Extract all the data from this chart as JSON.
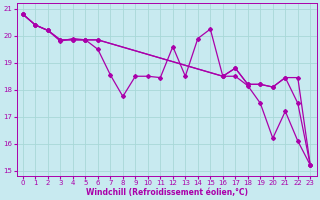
{
  "bg_color": "#c8eaf0",
  "grid_color": "#a8d8d8",
  "line_color": "#aa00aa",
  "xlabel": "Windchill (Refroidissement éolien,°C)",
  "xlim": [
    -0.5,
    23.5
  ],
  "ylim": [
    14.8,
    21.2
  ],
  "yticks": [
    15,
    16,
    17,
    18,
    19,
    20,
    21
  ],
  "xticks": [
    0,
    1,
    2,
    3,
    4,
    5,
    6,
    7,
    8,
    9,
    10,
    11,
    12,
    13,
    14,
    15,
    16,
    17,
    18,
    19,
    20,
    21,
    22,
    23
  ],
  "series1_x": [
    0,
    1,
    2,
    3,
    4,
    5,
    6,
    7,
    8,
    9,
    10,
    11,
    12,
    13,
    14,
    15,
    16,
    17,
    18,
    19,
    20,
    21,
    22,
    23
  ],
  "series1_y": [
    20.8,
    20.4,
    20.2,
    19.8,
    19.9,
    19.85,
    19.5,
    18.55,
    17.75,
    18.5,
    18.5,
    18.45,
    19.6,
    18.5,
    19.9,
    20.25,
    18.5,
    18.5,
    18.15,
    17.5,
    16.2,
    17.2,
    16.1,
    15.2
  ],
  "series2_x": [
    0,
    1,
    2,
    3,
    4,
    5,
    6,
    16,
    17,
    18,
    19,
    20,
    21,
    22,
    23
  ],
  "series2_y": [
    20.8,
    20.4,
    20.2,
    19.85,
    19.85,
    19.85,
    19.85,
    18.5,
    18.8,
    18.2,
    18.2,
    18.1,
    18.45,
    17.5,
    15.2
  ],
  "series3_x": [
    0,
    1,
    2,
    3,
    4,
    5,
    6,
    16,
    17,
    18,
    19,
    20,
    21,
    22,
    23
  ],
  "series3_y": [
    20.8,
    20.4,
    20.2,
    19.85,
    19.85,
    19.85,
    19.85,
    18.5,
    18.8,
    18.2,
    18.2,
    18.1,
    18.45,
    18.45,
    15.2
  ]
}
